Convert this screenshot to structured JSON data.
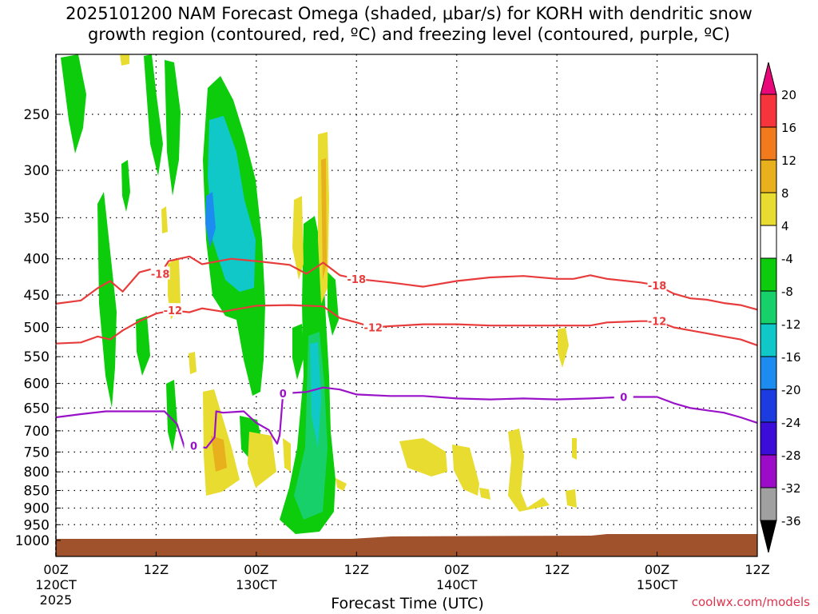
{
  "title": "2025101200 NAM Forecast Omega (shaded, μbar/s) for KORH with dendritic snow\ngrowth region (contoured, red, ºC) and freezing level (contoured, purple, ºC)",
  "credit": "coolwx.com/models",
  "chart_data": {
    "type": "time-height contour",
    "xlabel": "Forecast Time (UTC)",
    "ylabel": "",
    "x_ticks": [
      {
        "hour": 0,
        "lines": [
          "00Z",
          "120CT",
          "2025"
        ]
      },
      {
        "hour": 12,
        "lines": [
          "12Z"
        ]
      },
      {
        "hour": 24,
        "lines": [
          "00Z",
          "130CT"
        ]
      },
      {
        "hour": 36,
        "lines": [
          "12Z"
        ]
      },
      {
        "hour": 48,
        "lines": [
          "00Z",
          "140CT"
        ]
      },
      {
        "hour": 60,
        "lines": [
          "12Z"
        ]
      },
      {
        "hour": 72,
        "lines": [
          "00Z",
          "150CT"
        ]
      },
      {
        "hour": 84,
        "lines": [
          "12Z"
        ]
      }
    ],
    "x_range": [
      0,
      84
    ],
    "y_ticks": [
      250,
      300,
      350,
      400,
      450,
      500,
      550,
      600,
      650,
      700,
      750,
      800,
      850,
      900,
      950,
      1000
    ],
    "y_range_hpa": [
      200,
      1040
    ],
    "colorbar": {
      "labels": [
        "20",
        "16",
        "12",
        "8",
        "4",
        "-4",
        "-8",
        "-12",
        "-16",
        "-20",
        "-24",
        "-28",
        "-32",
        "-36"
      ],
      "colors": [
        "#e8087a",
        "#f5343c",
        "#f07a1c",
        "#e8b01c",
        "#e8dc30",
        "#ffffff",
        "#0ccc0c",
        "#18d06a",
        "#10c8c8",
        "#1c8cf0",
        "#1c3ce0",
        "#3c0cd8",
        "#9c0cc8",
        "#a0a0a0",
        "#000000"
      ]
    },
    "series": [
      {
        "name": "-18 isotherm",
        "color": "#e83c3c",
        "label": "-18",
        "x": [
          0,
          3,
          5,
          6.5,
          8,
          10,
          12,
          12.5,
          13.5,
          16,
          17.5,
          21,
          24,
          28,
          30,
          32,
          34,
          36,
          40,
          44,
          48,
          52,
          56,
          60,
          62,
          64,
          66,
          70,
          72,
          74,
          76,
          78,
          80,
          82,
          84
        ],
        "hpa": [
          463,
          458,
          440,
          430,
          445,
          418,
          412,
          420,
          403,
          397,
          407,
          400,
          403,
          408,
          420,
          405,
          422,
          427,
          432,
          438,
          430,
          425,
          423,
          427,
          427,
          422,
          427,
          432,
          436,
          448,
          455,
          457,
          462,
          465,
          472
        ]
      },
      {
        "name": "-12 isotherm",
        "color": "#e83c3c",
        "label": "-12",
        "x": [
          0,
          3,
          5,
          6.5,
          8,
          10,
          12,
          14,
          16,
          17.5,
          20,
          24,
          28,
          32,
          34,
          36,
          38,
          40,
          44,
          48,
          52,
          56,
          60,
          64,
          66,
          70,
          72,
          74,
          76,
          78,
          80,
          82,
          84
        ],
        "hpa": [
          527,
          525,
          515,
          520,
          505,
          490,
          478,
          473,
          476,
          470,
          475,
          466,
          465,
          467,
          485,
          492,
          500,
          498,
          495,
          495,
          497,
          497,
          497,
          497,
          492,
          490,
          490,
          500,
          505,
          510,
          515,
          520,
          530
        ]
      },
      {
        "name": "0 isotherm (freezing level)",
        "color": "#9a12c8",
        "label": "0",
        "x": [
          0,
          3,
          6,
          9,
          11,
          13,
          14.5,
          15.5,
          16.5,
          18,
          19,
          19.2,
          20,
          22.5,
          24,
          25.5,
          26,
          26.5,
          26.8,
          27.2,
          30,
          32,
          34,
          36,
          40,
          44,
          48,
          52,
          56,
          60,
          64,
          68,
          72,
          74,
          76,
          78,
          80,
          82,
          84
        ],
        "hpa": [
          670,
          663,
          657,
          657,
          657,
          657,
          685,
          745,
          735,
          740,
          715,
          657,
          660,
          657,
          682,
          698,
          715,
          730,
          710,
          620,
          617,
          608,
          612,
          622,
          625,
          625,
          630,
          632,
          630,
          632,
          630,
          627,
          627,
          640,
          650,
          655,
          660,
          670,
          682
        ]
      }
    ]
  }
}
